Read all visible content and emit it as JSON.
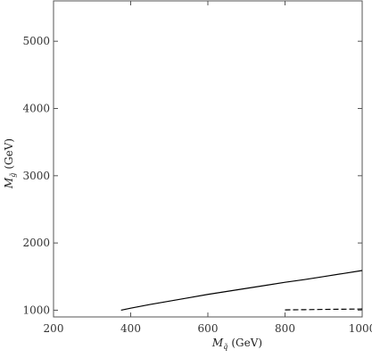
{
  "chart_data": {
    "type": "line",
    "xlabel_main": "M",
    "xlabel_sub": "q̃",
    "xlabel_unit": "(GeV)",
    "ylabel_main": "M",
    "ylabel_sub": "g̃",
    "ylabel_unit": "(GeV)",
    "xlim": [
      200,
      1000
    ],
    "ylim": [
      900,
      5600
    ],
    "xticks": [
      200,
      400,
      600,
      800,
      1000
    ],
    "yticks": [
      1000,
      2000,
      3000,
      4000,
      5000
    ],
    "xtick_labels": [
      "200",
      "400",
      "600",
      "800",
      "1000"
    ],
    "ytick_labels": [
      "1000",
      "2000",
      "3000",
      "4000",
      "5000"
    ],
    "grid": false,
    "series": [
      {
        "style": "solid",
        "color": "#000000",
        "x": [
          375,
          400,
          450,
          500,
          550,
          600,
          650,
          700,
          750,
          800,
          850,
          900,
          950,
          1000
        ],
        "y": [
          1000,
          1030,
          1085,
          1135,
          1185,
          1235,
          1280,
          1325,
          1370,
          1415,
          1455,
          1500,
          1545,
          1590
        ]
      },
      {
        "style": "dashed",
        "color": "#000000",
        "x": [
          800,
          850,
          900,
          950,
          1000
        ],
        "y": [
          1005,
          1008,
          1012,
          1015,
          1018
        ]
      }
    ]
  }
}
